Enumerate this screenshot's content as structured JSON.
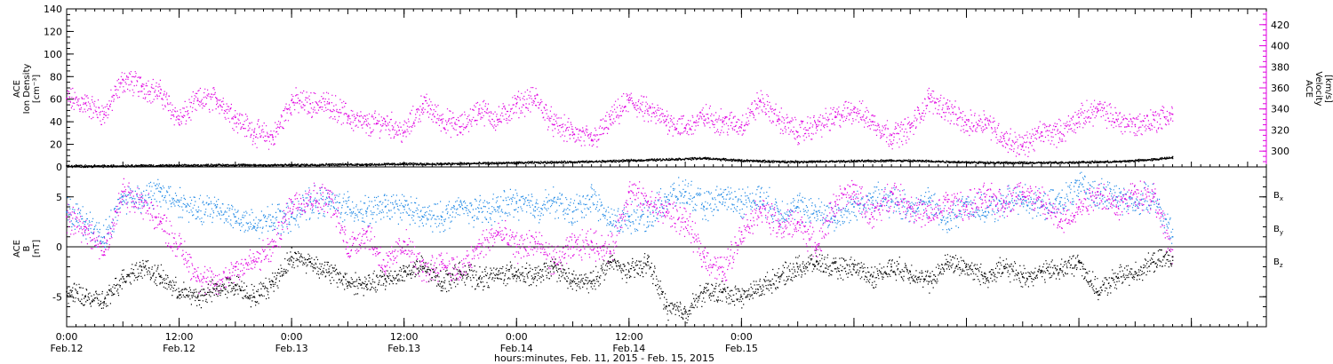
{
  "chart_data": [
    {
      "panel": "top",
      "type": "scatter",
      "ylabel_lines": [
        "ACE",
        "Ion Density",
        "[cm⁻³]"
      ],
      "ylim": [
        0,
        140
      ],
      "yticks": [
        0,
        20,
        40,
        60,
        80,
        100,
        120,
        140
      ],
      "ytick_labels": [
        "0",
        "20",
        "40",
        "60",
        "80",
        "100",
        "120",
        "140"
      ],
      "y2label_lines": [
        "ACE",
        "Velocity",
        "[km/s]"
      ],
      "y2lim": [
        285,
        435
      ],
      "y2ticks": [
        300,
        320,
        340,
        360,
        380,
        400,
        420
      ],
      "y2tick_labels": [
        "300",
        "320",
        "340",
        "360",
        "380",
        "400",
        "420"
      ],
      "y2_color": "#e000e0",
      "series": [
        {
          "axis": "left",
          "color": "#000000",
          "x_hours": [
            0,
            4,
            8,
            12,
            16,
            20,
            24,
            28,
            32,
            36,
            40,
            44,
            48,
            52,
            56,
            60,
            64,
            68,
            72,
            76,
            80,
            84,
            88,
            92,
            96,
            100,
            104,
            108,
            112,
            116,
            118
          ],
          "values": [
            1,
            1,
            1.5,
            1.5,
            2,
            2,
            2,
            2.5,
            2.5,
            3,
            3,
            3.5,
            4,
            4.5,
            5,
            6,
            7,
            8,
            6,
            5,
            5,
            5.5,
            6,
            5.5,
            4.5,
            4,
            4,
            4.5,
            5,
            7,
            9
          ]
        },
        {
          "axis": "right",
          "color": "#e000e0",
          "x_hours": [
            0,
            2,
            4,
            6,
            8,
            10,
            12,
            14,
            16,
            18,
            20,
            22,
            24,
            26,
            28,
            30,
            32,
            34,
            36,
            38,
            40,
            42,
            44,
            46,
            48,
            50,
            52,
            54,
            56,
            58,
            60,
            62,
            64,
            66,
            68,
            70,
            72,
            74,
            76,
            78,
            80,
            82,
            84,
            86,
            88,
            90,
            92,
            94,
            96,
            98,
            100,
            102,
            104,
            106,
            108,
            110,
            112,
            114,
            116,
            118
          ],
          "values": [
            350,
            345,
            335,
            368,
            362,
            355,
            330,
            348,
            350,
            332,
            318,
            313,
            348,
            345,
            345,
            333,
            325,
            328,
            318,
            345,
            330,
            323,
            340,
            330,
            345,
            350,
            325,
            318,
            310,
            330,
            348,
            338,
            330,
            322,
            333,
            328,
            325,
            348,
            330,
            318,
            325,
            332,
            340,
            328,
            315,
            322,
            350,
            340,
            325,
            330,
            312,
            305,
            318,
            318,
            332,
            340,
            330,
            325,
            330,
            335
          ]
        }
      ]
    },
    {
      "panel": "bottom",
      "type": "scatter",
      "ylabel_lines": [
        "ACE",
        "B",
        "[nT]"
      ],
      "ylim": [
        -8,
        8
      ],
      "yticks": [
        -5,
        0,
        5
      ],
      "ytick_labels": [
        "-5",
        "0",
        "5"
      ],
      "zero_line": true,
      "legend_position": "right",
      "series": [
        {
          "name": "Bx",
          "color": "#000000",
          "x_hours": [
            0,
            2,
            4,
            6,
            8,
            10,
            12,
            14,
            16,
            18,
            20,
            22,
            24,
            26,
            28,
            30,
            32,
            34,
            36,
            38,
            40,
            42,
            44,
            46,
            48,
            50,
            52,
            54,
            56,
            58,
            60,
            62,
            64,
            66,
            68,
            70,
            72,
            74,
            76,
            78,
            80,
            82,
            84,
            86,
            88,
            90,
            92,
            94,
            96,
            98,
            100,
            102,
            104,
            106,
            108,
            110,
            112,
            114,
            116,
            118
          ],
          "values": [
            -4.5,
            -5,
            -5.5,
            -3,
            -2,
            -3,
            -4.5,
            -5,
            -4.2,
            -3.8,
            -5,
            -3.5,
            -1,
            -1.5,
            -2.5,
            -3.5,
            -3.8,
            -3.2,
            -2.5,
            -2,
            -3.5,
            -2.5,
            -3.2,
            -2.8,
            -2.5,
            -3,
            -2,
            -3.5,
            -3.5,
            -1.5,
            -2.5,
            -1.5,
            -6,
            -6.5,
            -4.5,
            -4.5,
            -5,
            -4,
            -3,
            -2,
            -1.5,
            -2.2,
            -2,
            -3,
            -2,
            -2.5,
            -3.5,
            -1.5,
            -2,
            -3,
            -2,
            -3,
            -2.5,
            -2.2,
            -1.5,
            -4.5,
            -3,
            -2.5,
            -1.5,
            -1
          ]
        },
        {
          "name": "By",
          "color": "#1e88e5",
          "x_hours": [
            0,
            2,
            4,
            6,
            8,
            10,
            12,
            14,
            16,
            18,
            20,
            22,
            24,
            26,
            28,
            30,
            32,
            34,
            36,
            38,
            40,
            42,
            44,
            46,
            48,
            50,
            52,
            54,
            56,
            58,
            60,
            62,
            64,
            66,
            68,
            70,
            72,
            74,
            76,
            78,
            80,
            82,
            84,
            86,
            88,
            90,
            92,
            94,
            96,
            98,
            100,
            102,
            104,
            106,
            108,
            110,
            112,
            114,
            116,
            118
          ],
          "values": [
            3.5,
            2.5,
            1,
            5,
            5,
            5.5,
            4.5,
            3.5,
            4,
            3,
            2,
            3,
            3,
            4.5,
            4.5,
            4,
            3.5,
            4,
            4,
            3,
            3,
            4,
            3.5,
            4,
            4.5,
            4,
            4.5,
            3.5,
            5,
            2.5,
            3,
            3,
            5,
            5.5,
            4,
            5,
            4.5,
            5,
            3.5,
            4,
            3.5,
            3,
            4,
            5,
            4.5,
            4,
            4.5,
            2.5,
            4.5,
            3.5,
            4.5,
            5,
            4,
            4.5,
            6,
            5.5,
            5,
            4.5,
            5,
            1
          ]
        },
        {
          "name": "Bz",
          "color": "#e000e0",
          "x_hours": [
            0,
            2,
            4,
            6,
            8,
            10,
            12,
            14,
            16,
            18,
            20,
            22,
            24,
            26,
            28,
            30,
            32,
            34,
            36,
            38,
            40,
            42,
            44,
            46,
            48,
            50,
            52,
            54,
            56,
            58,
            60,
            62,
            64,
            66,
            68,
            70,
            72,
            74,
            76,
            78,
            80,
            82,
            84,
            86,
            88,
            90,
            92,
            94,
            96,
            98,
            100,
            102,
            104,
            106,
            108,
            110,
            112,
            114,
            116,
            118
          ],
          "values": [
            3,
            2,
            -0.5,
            5.5,
            4.5,
            2.5,
            0,
            -3,
            -3.8,
            -2,
            -1.5,
            0,
            4.5,
            5,
            5,
            0,
            1.5,
            -2,
            0.5,
            -2.5,
            -1.5,
            -2.5,
            0,
            1.5,
            0,
            0.5,
            -1.5,
            0,
            0.5,
            -0.5,
            5.5,
            4.5,
            3.5,
            2.5,
            -1,
            -2.5,
            1.5,
            4,
            2,
            2.5,
            0,
            4.5,
            5.5,
            3,
            5.5,
            4,
            3,
            4.5,
            4,
            5,
            4.5,
            5.5,
            4.5,
            2.5,
            4,
            5.5,
            4,
            5.5,
            5,
            -1
          ]
        }
      ]
    }
  ],
  "legend": {
    "bx": {
      "main": "B",
      "sub": "x"
    },
    "by": {
      "main": "B",
      "sub": "y"
    },
    "bz": {
      "main": "B",
      "sub": "z"
    }
  },
  "x_axis": {
    "xlim_hours": [
      0,
      128
    ],
    "tick_hours": [
      0,
      12,
      24,
      36,
      48,
      60,
      72,
      84,
      96,
      108,
      120
    ],
    "major_labels": [
      {
        "hour": 0,
        "time": "0:00",
        "date": "Feb.12"
      },
      {
        "hour": 12,
        "time": "12:00",
        "date": "Feb.12"
      },
      {
        "hour": 24,
        "time": "0:00",
        "date": "Feb.13"
      },
      {
        "hour": 36,
        "time": "12:00",
        "date": "Feb.13"
      },
      {
        "hour": 48,
        "time": "0:00",
        "date": "Feb.14"
      },
      {
        "hour": 60,
        "time": "12:00",
        "date": "Feb.14"
      },
      {
        "hour": 72,
        "time": "0:00",
        "date": "Feb.15"
      }
    ],
    "title": "hours:minutes, Feb. 11, 2015 - Feb. 15, 2015"
  }
}
